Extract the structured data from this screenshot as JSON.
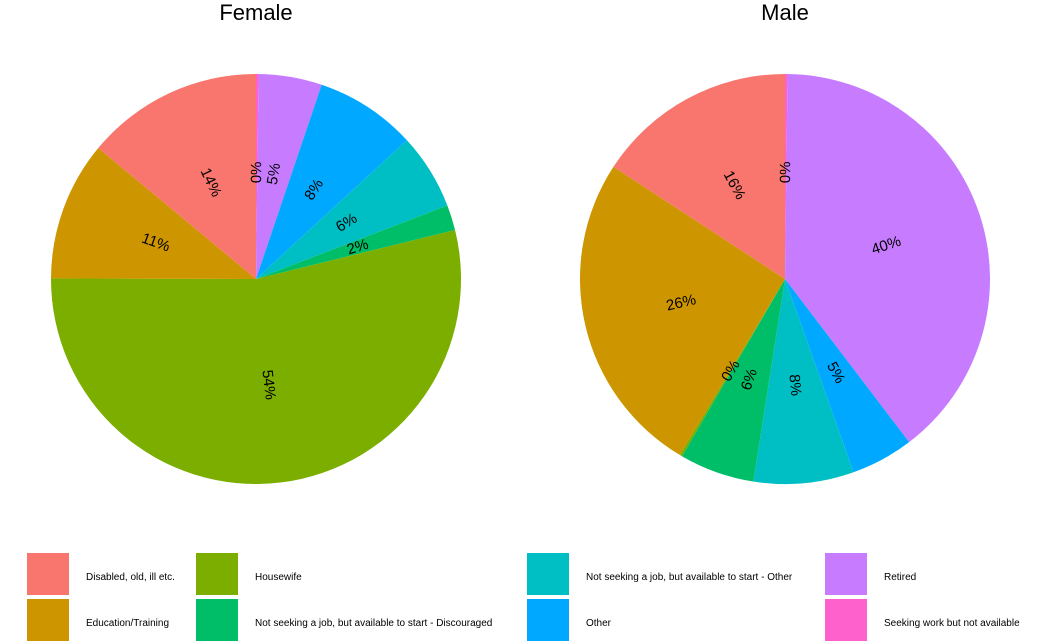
{
  "chart_data": {
    "type": "pie",
    "categories": [
      "Disabled, old, ill etc.",
      "Education/Training",
      "Housewife",
      "Not seeking a job, but available to start - Discouraged",
      "Not seeking a job, but available to start - Other",
      "Other",
      "Retired",
      "Seeking work but not available"
    ],
    "colors": {
      "Disabled, old, ill etc.": "#F8766D",
      "Education/Training": "#CD9600",
      "Housewife": "#7CAE00",
      "Not seeking a job, but available to start - Discouraged": "#00BE67",
      "Not seeking a job, but available to start - Other": "#00BFC4",
      "Other": "#00A9FF",
      "Retired": "#C77CFF",
      "Seeking work but not available": "#FF61CC"
    },
    "panels": [
      {
        "title": "Female",
        "slices": [
          {
            "category": "Seeking work but not available",
            "value": 0.2,
            "label": "0%"
          },
          {
            "category": "Retired",
            "value": 5,
            "label": "5%"
          },
          {
            "category": "Other",
            "value": 8,
            "label": "8%"
          },
          {
            "category": "Not seeking a job, but available to start - Other",
            "value": 6,
            "label": "6%"
          },
          {
            "category": "Not seeking a job, but available to start - Discouraged",
            "value": 2,
            "label": "2%"
          },
          {
            "category": "Housewife",
            "value": 54,
            "label": "54%"
          },
          {
            "category": "Education/Training",
            "value": 11,
            "label": "11%"
          },
          {
            "category": "Disabled, old, ill etc.",
            "value": 14,
            "label": "14%"
          }
        ]
      },
      {
        "title": "Male",
        "slices": [
          {
            "category": "Seeking work but not available",
            "value": 0.2,
            "label": "0%"
          },
          {
            "category": "Retired",
            "value": 40,
            "label": "40%"
          },
          {
            "category": "Other",
            "value": 5,
            "label": "5%"
          },
          {
            "category": "Not seeking a job, but available to start - Other",
            "value": 8,
            "label": "8%"
          },
          {
            "category": "Not seeking a job, but available to start - Discouraged",
            "value": 6,
            "label": "6%"
          },
          {
            "category": "Housewife",
            "value": 0.2,
            "label": "0%"
          },
          {
            "category": "Education/Training",
            "value": 26,
            "label": "26%"
          },
          {
            "category": "Disabled, old, ill etc.",
            "value": 16,
            "label": "16%"
          }
        ]
      }
    ],
    "legend": {
      "position": "bottom",
      "entries": [
        "Disabled, old, ill etc.",
        "Education/Training",
        "Housewife",
        "Not seeking a job, but available to start - Discouraged",
        "Not seeking a job, but available to start - Other",
        "Other",
        "Retired",
        "Seeking work but not available"
      ]
    }
  }
}
